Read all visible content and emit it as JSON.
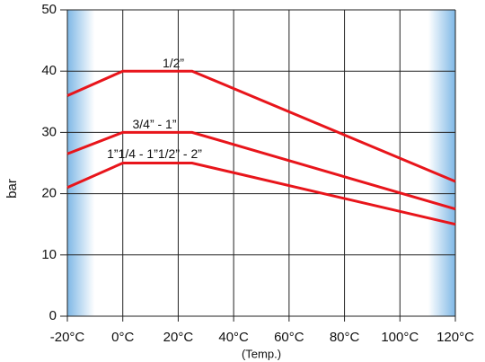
{
  "chart_data": {
    "type": "line",
    "x": [
      -20,
      0,
      25,
      120
    ],
    "series": [
      {
        "name": "1/2”",
        "color": "#e8151b",
        "values": [
          36,
          40,
          40,
          22
        ]
      },
      {
        "name": "3/4” - 1”",
        "color": "#e8151b",
        "values": [
          26.5,
          30,
          30,
          17.5
        ]
      },
      {
        "name": "1”1/4 - 1”1/2” - 2”",
        "color": "#e8151b",
        "values": [
          21,
          25,
          25,
          15
        ]
      }
    ],
    "xlim": [
      -20,
      120
    ],
    "xticks": [
      {
        "value": -20,
        "label": "-20°C"
      },
      {
        "value": 0,
        "label": "0°C"
      },
      {
        "value": 20,
        "label": "20°C"
      },
      {
        "value": 40,
        "label": "40°C"
      },
      {
        "value": 60,
        "label": "60°C"
      },
      {
        "value": 80,
        "label": "80°C"
      },
      {
        "value": 100,
        "label": "100°C"
      },
      {
        "value": 120,
        "label": "120°C"
      }
    ],
    "ylim": [
      0,
      50
    ],
    "yticks": [
      0,
      10,
      20,
      30,
      40,
      50
    ],
    "xlabel": "(Temp.)",
    "ylabel": "bar",
    "grid": true
  }
}
